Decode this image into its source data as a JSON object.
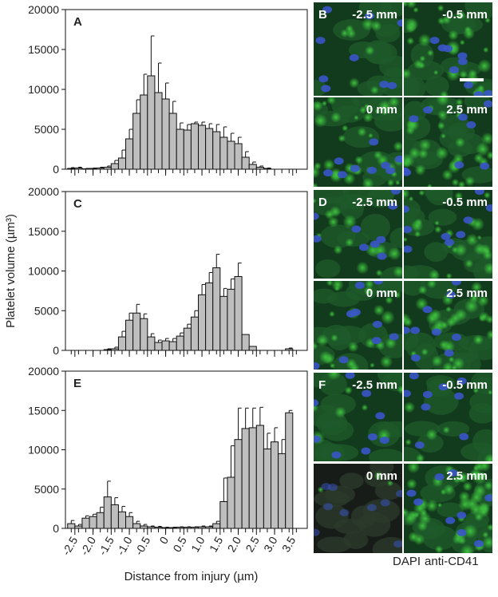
{
  "chart_data": [
    {
      "type": "bar",
      "panel": "A",
      "x": [
        -2.6,
        -2.4,
        -2.2,
        -2.0,
        -1.8,
        -1.6,
        -1.4,
        -1.2,
        -1.0,
        -0.8,
        -0.6,
        -0.4,
        -0.2,
        0,
        0.2,
        0.4,
        0.6,
        0.8,
        1.0,
        1.2,
        1.4,
        1.6,
        1.8,
        2.0,
        2.2,
        2.4,
        2.6,
        2.8,
        3.0,
        3.2,
        3.4,
        3.6
      ],
      "values": [
        100,
        150,
        50,
        100,
        150,
        250,
        700,
        1400,
        3800,
        7000,
        9300,
        11700,
        9600,
        8800,
        7000,
        5000,
        4900,
        5700,
        5500,
        5100,
        4700,
        4000,
        3500,
        3200,
        1500,
        600,
        250,
        100,
        0,
        0,
        0,
        0
      ],
      "errors": [
        100,
        100,
        50,
        50,
        100,
        150,
        400,
        1000,
        1200,
        1700,
        2600,
        5000,
        3700,
        2000,
        1500,
        800,
        700,
        200,
        400,
        600,
        900,
        1300,
        1000,
        800,
        700,
        300,
        150,
        50,
        0,
        0,
        0,
        0
      ],
      "color": "#bebebe",
      "xlim": [
        -2.76,
        3.9
      ],
      "ylim": [
        0,
        20000
      ],
      "yticks": [
        0,
        5000,
        10000,
        15000,
        20000
      ],
      "xticks": [
        -2.5,
        {
          "value": -2,
          "label": "-2.0"
        },
        -1.5,
        {
          "value": -1,
          "label": "-1.0"
        },
        -0.5,
        0,
        0.5,
        {
          "value": 1,
          "label": "1.0"
        },
        1.5,
        {
          "value": 2,
          "label": "2.0"
        },
        2.5,
        {
          "value": 3,
          "label": "3.0"
        },
        3.5
      ],
      "show_xtick_labels": false
    },
    {
      "type": "bar",
      "panel": "C",
      "ylabel": "Platelet volume (µm³)",
      "x": [
        -2.6,
        -2.4,
        -2.2,
        -2.0,
        -1.8,
        -1.6,
        -1.4,
        -1.2,
        -1.0,
        -0.8,
        -0.6,
        -0.4,
        -0.2,
        0,
        0.2,
        0.4,
        0.6,
        0.8,
        1.0,
        1.2,
        1.4,
        1.6,
        1.8,
        2.0,
        2.2,
        2.4,
        2.6,
        2.8,
        3.0,
        3.2,
        3.4,
        3.6
      ],
      "values": [
        0,
        0,
        0,
        0,
        0,
        100,
        200,
        1700,
        3800,
        4700,
        4000,
        1700,
        1000,
        1200,
        1100,
        1800,
        2800,
        4200,
        7000,
        8500,
        10400,
        6800,
        7700,
        9300,
        2000,
        500,
        0,
        0,
        0,
        0,
        200,
        0
      ],
      "errors": [
        0,
        0,
        0,
        0,
        0,
        100,
        200,
        700,
        900,
        1100,
        600,
        400,
        300,
        300,
        400,
        400,
        500,
        800,
        1300,
        1300,
        1700,
        1000,
        1300,
        1700,
        0,
        0,
        0,
        0,
        0,
        0,
        100,
        0
      ],
      "color": "#bebebe",
      "xlim": [
        -2.76,
        3.9
      ],
      "ylim": [
        0,
        20000
      ],
      "yticks": [
        0,
        5000,
        10000,
        15000,
        20000
      ],
      "xticks": [
        -2.5,
        {
          "value": -2,
          "label": "-2.0"
        },
        -1.5,
        {
          "value": -1,
          "label": "-1.0"
        },
        -0.5,
        0,
        0.5,
        {
          "value": 1,
          "label": "1.0"
        },
        1.5,
        {
          "value": 2,
          "label": "2.0"
        },
        2.5,
        {
          "value": 3,
          "label": "3.0"
        },
        3.5
      ],
      "show_xtick_labels": false
    },
    {
      "type": "bar",
      "panel": "E",
      "xlabel": "Distance from injury (µm)",
      "x": [
        -2.6,
        -2.4,
        -2.2,
        -2.0,
        -1.8,
        -1.6,
        -1.4,
        -1.2,
        -1.0,
        -0.8,
        -0.6,
        -0.4,
        -0.2,
        0,
        0.2,
        0.4,
        0.6,
        0.8,
        1.0,
        1.2,
        1.4,
        1.6,
        1.8,
        2.0,
        2.2,
        2.4,
        2.6,
        2.8,
        3.0,
        3.2,
        3.4,
        3.6
      ],
      "values": [
        600,
        300,
        1300,
        1500,
        2000,
        4000,
        3000,
        2100,
        1500,
        600,
        300,
        200,
        150,
        100,
        100,
        150,
        150,
        150,
        200,
        200,
        600,
        3400,
        6500,
        11300,
        12700,
        12800,
        13100,
        10100,
        11000,
        9500,
        14700,
        0
      ],
      "errors": [
        400,
        200,
        300,
        300,
        700,
        2000,
        900,
        700,
        500,
        300,
        200,
        100,
        100,
        50,
        50,
        50,
        50,
        50,
        100,
        100,
        300,
        3000,
        4000,
        4000,
        2600,
        2500,
        2300,
        2000,
        1800,
        1800,
        300,
        0
      ],
      "color": "#bebebe",
      "xlim": [
        -2.76,
        3.9
      ],
      "ylim": [
        0,
        20000
      ],
      "yticks": [
        0,
        5000,
        10000,
        15000,
        20000
      ],
      "xticks": [
        -2.5,
        {
          "value": -2,
          "label": "-2.0"
        },
        -1.5,
        {
          "value": -1,
          "label": "-1.0"
        },
        {
          "value": -0.5,
          "label": "-0.5",
          "color": "#d40000"
        },
        {
          "value": 0,
          "label": "0",
          "color": "#d40000"
        },
        {
          "value": 0.5,
          "label": "0.5",
          "color": "#d40000"
        },
        {
          "value": 1,
          "label": "1.0"
        },
        1.5,
        {
          "value": 2,
          "label": "2.0"
        },
        2.5,
        {
          "value": 3,
          "label": "3.0"
        },
        3.5
      ],
      "show_xtick_labels": true
    }
  ],
  "image_panels": [
    {
      "label": "B",
      "tiles": [
        "-2.5 mm",
        "-0.5 mm",
        "0 mm",
        "2.5 mm"
      ]
    },
    {
      "label": "D",
      "tiles": [
        "-2.5 mm",
        "-0.5 mm",
        "0 mm",
        "2.5 mm"
      ]
    },
    {
      "label": "F",
      "tiles": [
        "-2.5 mm",
        "-0.5 mm",
        "0 mm",
        "2.5 mm"
      ]
    }
  ],
  "stain_legend": [
    {
      "text": "DAPI",
      "color": "#2a3fa8"
    },
    {
      "text": "anti-CD41",
      "color": "#1a9a2a"
    }
  ]
}
